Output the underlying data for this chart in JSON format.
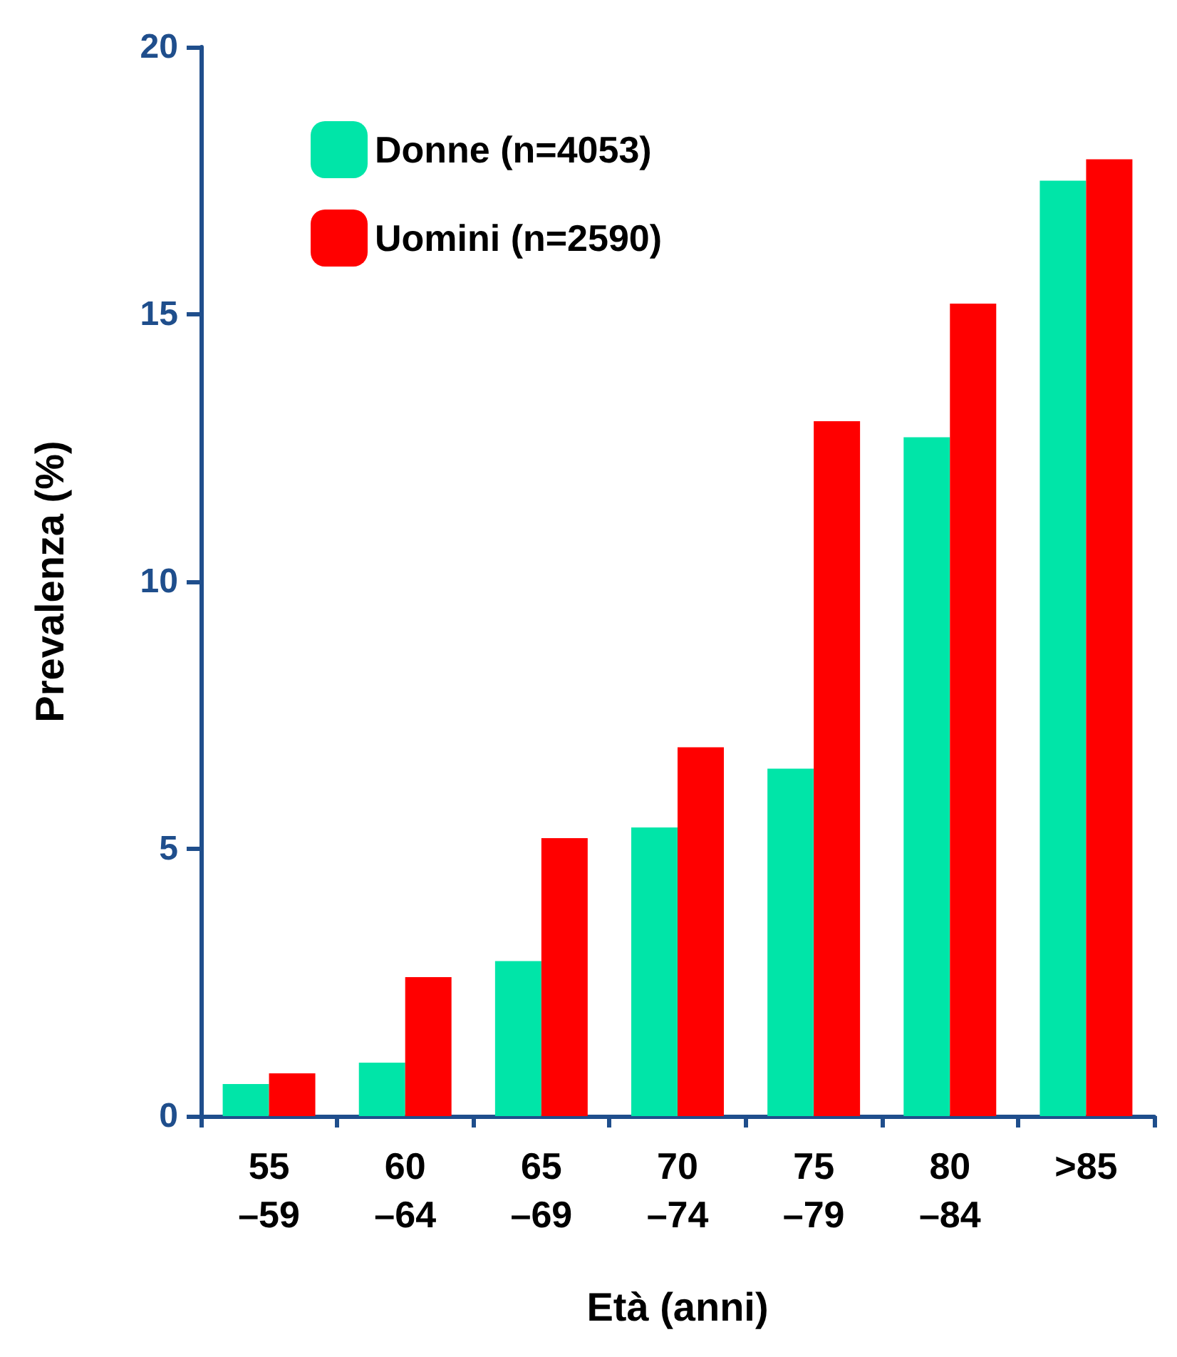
{
  "chart_data": {
    "type": "bar",
    "xlabel": "Età (anni)",
    "ylabel": "Prevalenza (%)",
    "categories": [
      "55\n–59",
      "60\n–64",
      "65\n–69",
      "70\n–74",
      "75\n–79",
      "80\n–84",
      ">85"
    ],
    "series": [
      {
        "name": "Donne (n=4053)",
        "color": "#00e5a8",
        "values": [
          0.6,
          1.0,
          2.9,
          5.4,
          6.5,
          12.7,
          17.5
        ]
      },
      {
        "name": "Uomini (n=2590)",
        "color": "#ff0000",
        "values": [
          0.8,
          2.6,
          5.2,
          6.9,
          13.0,
          15.2,
          17.9
        ]
      }
    ],
    "ylim": [
      0,
      20
    ],
    "yticks": [
      0,
      5,
      10,
      15,
      20
    ],
    "grid": false,
    "legend": "top left"
  }
}
